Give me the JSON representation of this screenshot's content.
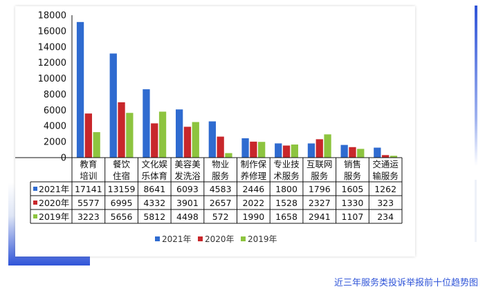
{
  "chart_data": {
    "type": "bar",
    "title": "",
    "xlabel": "",
    "ylabel": "",
    "ylim": [
      0,
      18000
    ],
    "yticks": [
      0,
      2000,
      4000,
      6000,
      8000,
      10000,
      12000,
      14000,
      16000,
      18000
    ],
    "categories": [
      [
        "教育",
        "培训"
      ],
      [
        "餐饮",
        "住宿"
      ],
      [
        "文化娱",
        "乐体育"
      ],
      [
        "美容美",
        "发洗浴"
      ],
      [
        "物业",
        "服务"
      ],
      [
        "制作保",
        "养修理"
      ],
      [
        "专业技",
        "术服务"
      ],
      [
        "互联网",
        "服务"
      ],
      [
        "销售",
        "服务"
      ],
      [
        "交通运",
        "输服务"
      ]
    ],
    "series": [
      {
        "name": "2021年",
        "color": "#2f6bd0",
        "values": [
          17141,
          13159,
          8641,
          6093,
          4583,
          2446,
          1800,
          1796,
          1605,
          1262
        ]
      },
      {
        "name": "2020年",
        "color": "#c8272b",
        "values": [
          5577,
          6995,
          4332,
          3901,
          2657,
          2022,
          1528,
          2327,
          1330,
          323
        ]
      },
      {
        "name": "2019年",
        "color": "#8dc43f",
        "values": [
          3223,
          5656,
          5812,
          4498,
          572,
          1990,
          1658,
          2941,
          1107,
          234
        ]
      }
    ],
    "grid": false,
    "legend": "bottom"
  },
  "caption": "近三年服务类投诉举报前十位趋势图"
}
